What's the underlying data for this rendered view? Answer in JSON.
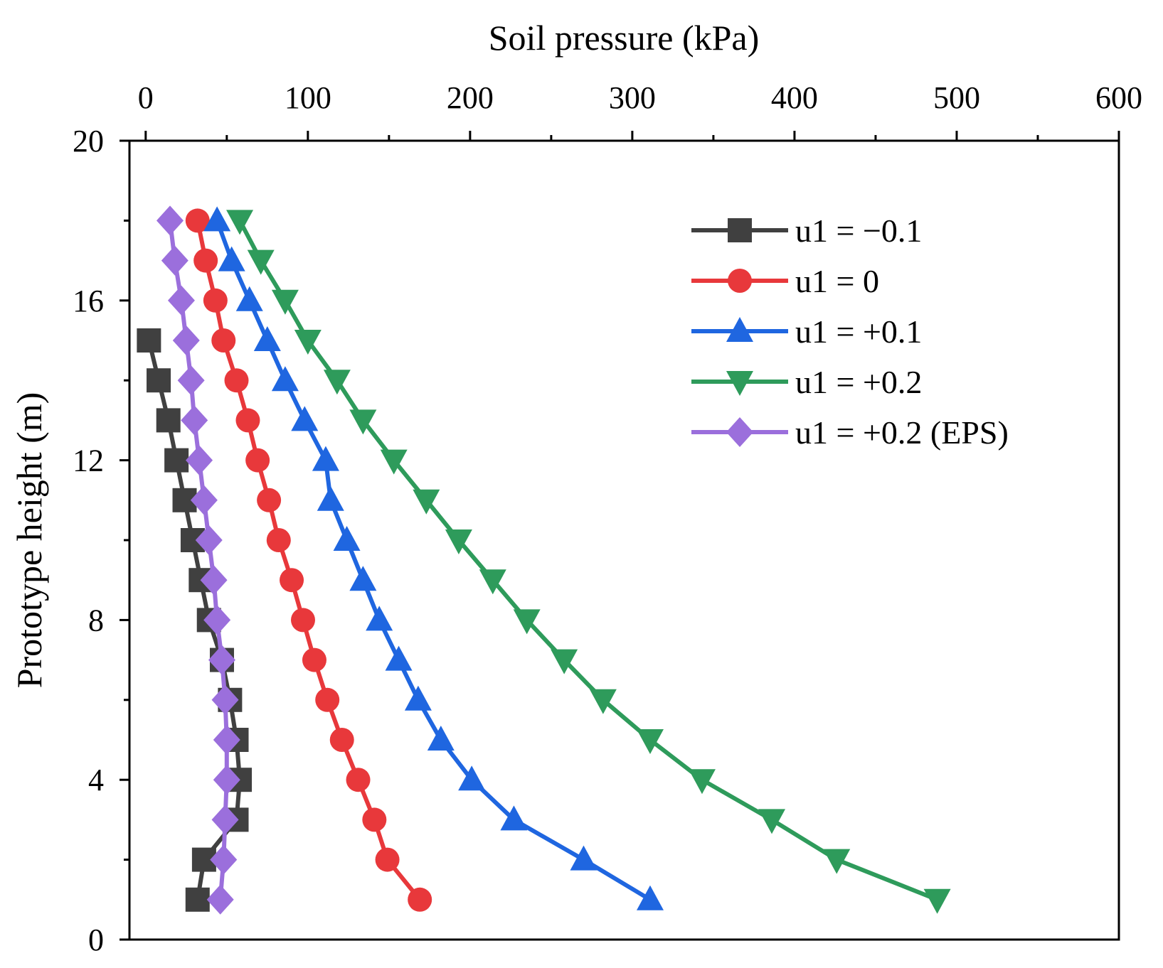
{
  "chart_data": {
    "type": "line",
    "title": "",
    "xlabel": "Soil pressure (kPa)",
    "ylabel": "Prototype height (m)",
    "xlim": [
      -10,
      600
    ],
    "ylim": [
      0,
      20
    ],
    "x_axis_position": "top",
    "x_ticks": [
      0,
      100,
      200,
      300,
      400,
      500,
      600
    ],
    "y_ticks": [
      0,
      4,
      8,
      12,
      16,
      20
    ],
    "grid": false,
    "legend_position": "top-right",
    "series": [
      {
        "name": "u1 = −0.1",
        "color": "#404040",
        "marker": "square",
        "points": [
          [
            2,
            15
          ],
          [
            8,
            14
          ],
          [
            14,
            13
          ],
          [
            19,
            12
          ],
          [
            24,
            11
          ],
          [
            29,
            10
          ],
          [
            34,
            9
          ],
          [
            39,
            8
          ],
          [
            47,
            7
          ],
          [
            52,
            6
          ],
          [
            56,
            5
          ],
          [
            58,
            4
          ],
          [
            56,
            3
          ],
          [
            36,
            2
          ],
          [
            32,
            1
          ]
        ]
      },
      {
        "name": "u1 = 0",
        "color": "#e8383b",
        "marker": "circle",
        "points": [
          [
            32,
            18
          ],
          [
            37,
            17
          ],
          [
            43,
            16
          ],
          [
            48,
            15
          ],
          [
            56,
            14
          ],
          [
            63,
            13
          ],
          [
            69,
            12
          ],
          [
            76,
            11
          ],
          [
            82,
            10
          ],
          [
            90,
            9
          ],
          [
            97,
            8
          ],
          [
            104,
            7
          ],
          [
            112,
            6
          ],
          [
            121,
            5
          ],
          [
            131,
            4
          ],
          [
            141,
            3
          ],
          [
            149,
            2
          ],
          [
            169,
            1
          ]
        ]
      },
      {
        "name": "u1 = +0.1",
        "color": "#1f66e0",
        "marker": "triangle-up",
        "points": [
          [
            44,
            18
          ],
          [
            53,
            17
          ],
          [
            64,
            16
          ],
          [
            75,
            15
          ],
          [
            86,
            14
          ],
          [
            98,
            13
          ],
          [
            111,
            12
          ],
          [
            114,
            11
          ],
          [
            124,
            10
          ],
          [
            134,
            9
          ],
          [
            144,
            8
          ],
          [
            156,
            7
          ],
          [
            168,
            6
          ],
          [
            182,
            5
          ],
          [
            201,
            4
          ],
          [
            227,
            3
          ],
          [
            270,
            2
          ],
          [
            311,
            1
          ]
        ]
      },
      {
        "name": "u1 = +0.2",
        "color": "#2e9b5b",
        "marker": "triangle-down",
        "points": [
          [
            58,
            18
          ],
          [
            71,
            17
          ],
          [
            86,
            16
          ],
          [
            100,
            15
          ],
          [
            118,
            14
          ],
          [
            134,
            13
          ],
          [
            153,
            12
          ],
          [
            173,
            11
          ],
          [
            193,
            10
          ],
          [
            214,
            9
          ],
          [
            235,
            8
          ],
          [
            258,
            7
          ],
          [
            282,
            6
          ],
          [
            311,
            5
          ],
          [
            343,
            4
          ],
          [
            386,
            3
          ],
          [
            426,
            2
          ],
          [
            488,
            1
          ]
        ]
      },
      {
        "name": "u1 = +0.2 (EPS)",
        "color": "#9b6fdc",
        "marker": "diamond",
        "points": [
          [
            15,
            18
          ],
          [
            18,
            17
          ],
          [
            22,
            16
          ],
          [
            25,
            15
          ],
          [
            28,
            14
          ],
          [
            30,
            13
          ],
          [
            33,
            12
          ],
          [
            36,
            11
          ],
          [
            39,
            10
          ],
          [
            42,
            9
          ],
          [
            44,
            8
          ],
          [
            47,
            7
          ],
          [
            49,
            6
          ],
          [
            50,
            5
          ],
          [
            50,
            4
          ],
          [
            49,
            3
          ],
          [
            48,
            2
          ],
          [
            46,
            1
          ]
        ]
      }
    ]
  }
}
